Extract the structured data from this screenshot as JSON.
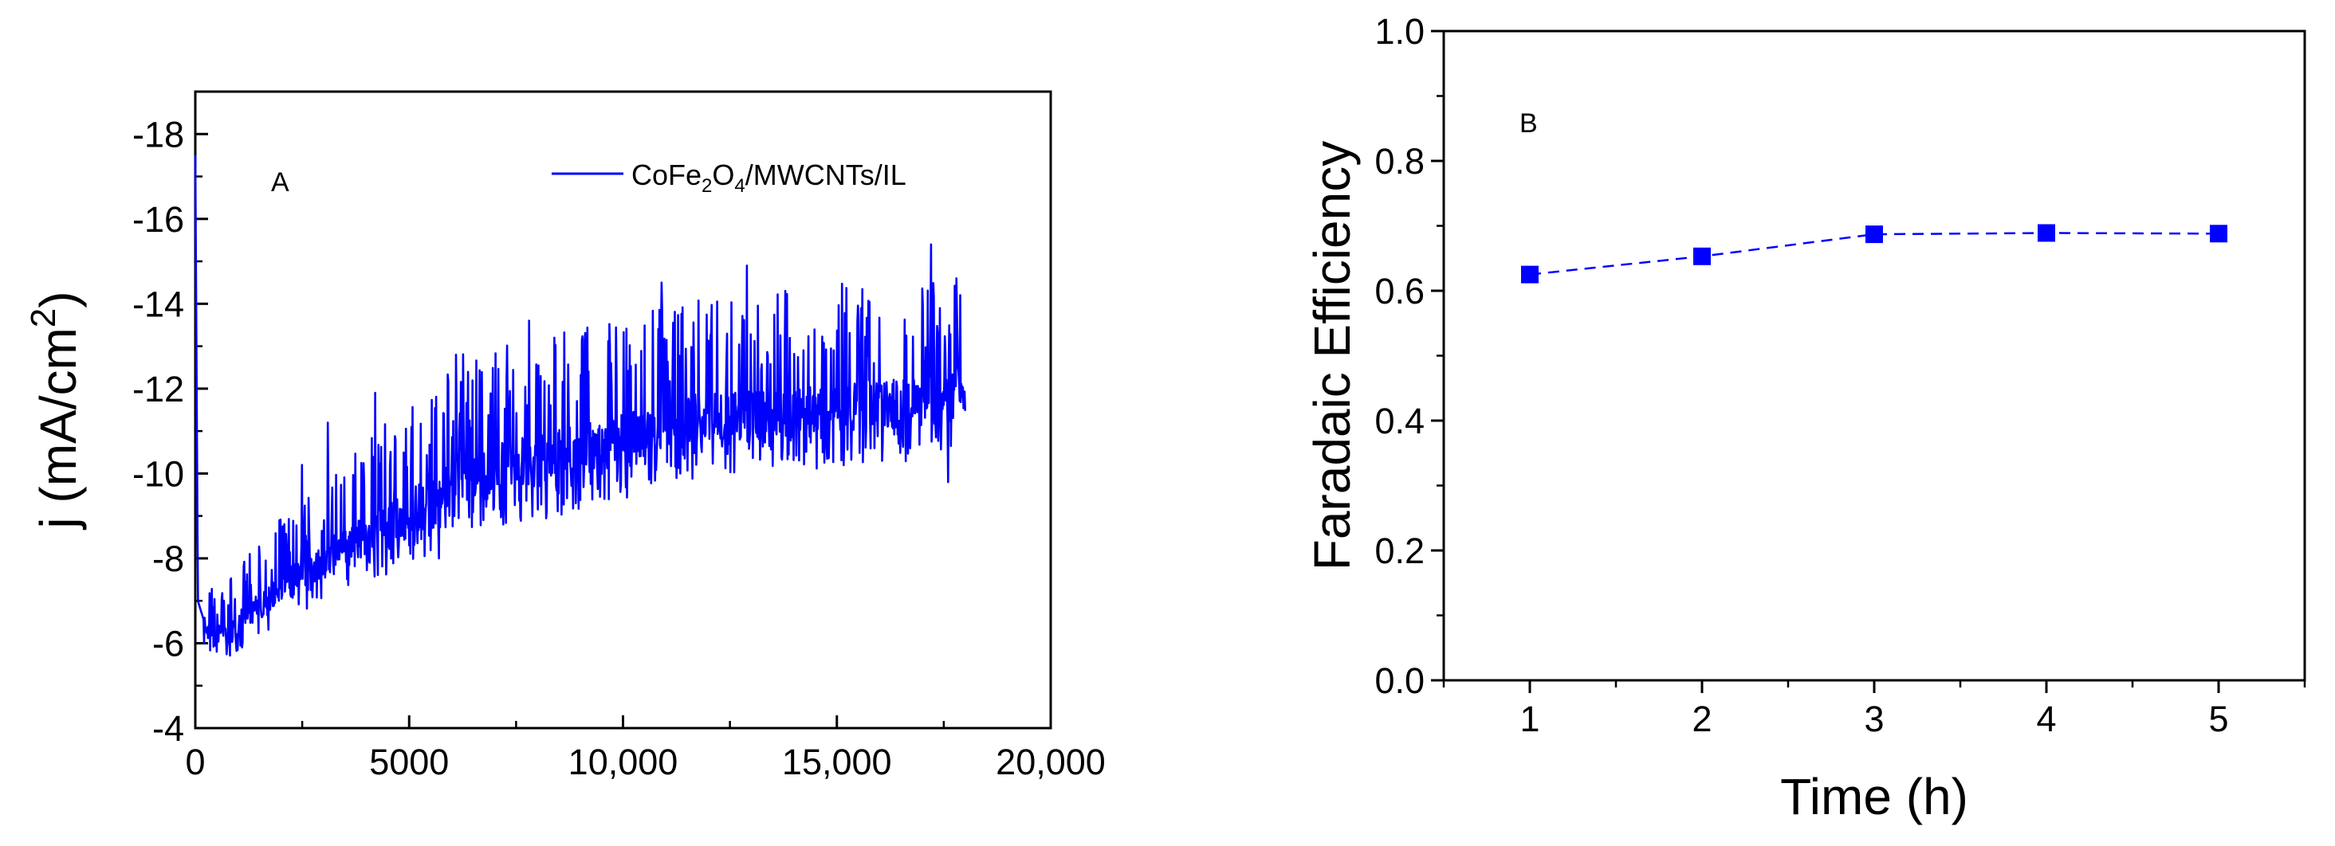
{
  "chart_data": [
    {
      "type": "line",
      "panel_label": "A",
      "ylabel": "j (mA/cm",
      "ylabel_sup": "2",
      "ylabel_close": ")",
      "xlim": [
        0,
        20000
      ],
      "ylim": [
        -4,
        -19
      ],
      "y_inverted": true,
      "x_ticks": [
        0,
        5000,
        10000,
        15000,
        20000
      ],
      "x_tick_labels": [
        "0",
        "5000",
        "10,000",
        "15,000",
        "20,000"
      ],
      "y_ticks": [
        -4,
        -6,
        -8,
        -10,
        -12,
        -14,
        -16,
        -18
      ],
      "y_tick_labels": [
        "-4",
        "-6",
        "-8",
        "-10",
        "-12",
        "-14",
        "-16",
        "-18"
      ],
      "legend_position": "top-right",
      "color": "#0000ff",
      "series": [
        {
          "name": "CoFe2O4/MWCNTs/IL",
          "legend_parts": [
            {
              "text": "CoFe",
              "sub": false
            },
            {
              "text": "2",
              "sub": true
            },
            {
              "text": "O",
              "sub": false
            },
            {
              "text": "4",
              "sub": true
            },
            {
              "text": "/MWCNTs/IL",
              "sub": false
            }
          ],
          "x_range": [
            0,
            18000
          ],
          "trend": [
            [
              0,
              -17.5
            ],
            [
              60,
              -7.0
            ],
            [
              300,
              -6.2
            ],
            [
              800,
              -6.3
            ],
            [
              2000,
              -7.3
            ],
            [
              3500,
              -8.3
            ],
            [
              5000,
              -9.0
            ],
            [
              5600,
              -9.6
            ],
            [
              6200,
              -10.0
            ],
            [
              8000,
              -10.3
            ],
            [
              10000,
              -10.8
            ],
            [
              11000,
              -11.2
            ],
            [
              13000,
              -11.4
            ],
            [
              15000,
              -11.6
            ],
            [
              17500,
              -11.7
            ],
            [
              18000,
              -12.0
            ]
          ],
          "noise_amplitude": 1.2,
          "peaks": [
            [
              2500,
              -10.2
            ],
            [
              3100,
              -11.2
            ],
            [
              4200,
              -11.9
            ],
            [
              6100,
              -12.8
            ],
            [
              7800,
              -13.6
            ],
            [
              10900,
              -14.5
            ],
            [
              12900,
              -14.9
            ],
            [
              17200,
              -15.4
            ],
            [
              17800,
              -14.6
            ]
          ],
          "troughs": [
            [
              500,
              -5.8
            ],
            [
              5700,
              -8.0
            ],
            [
              7200,
              -8.8
            ],
            [
              8900,
              -9.3
            ],
            [
              17600,
              -9.8
            ]
          ]
        }
      ]
    },
    {
      "type": "line",
      "panel_label": "B",
      "xlabel": "Time (h)",
      "ylabel": "Faradaic Efficiency",
      "xlim": [
        0.5,
        5.5
      ],
      "ylim": [
        0.0,
        1.0
      ],
      "x_ticks": [
        1,
        2,
        3,
        4,
        5
      ],
      "x_tick_labels": [
        "1",
        "2",
        "3",
        "4",
        "5"
      ],
      "y_ticks": [
        0.0,
        0.2,
        0.4,
        0.6,
        0.8,
        1.0
      ],
      "y_tick_labels": [
        "0.0",
        "0.2",
        "0.4",
        "0.6",
        "0.8",
        "1.0"
      ],
      "color": "#0000ff",
      "line_style": "dashed",
      "marker": "square",
      "series": [
        {
          "x": [
            1,
            2,
            3,
            4,
            5
          ],
          "values": [
            0.625,
            0.653,
            0.687,
            0.689,
            0.688
          ]
        }
      ]
    }
  ]
}
